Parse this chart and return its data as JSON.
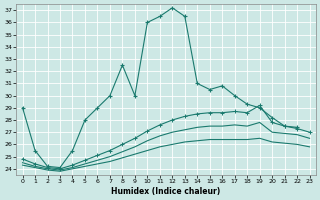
{
  "xlabel": "Humidex (Indice chaleur)",
  "bg_color": "#cde8e5",
  "grid_color": "#b0d8d4",
  "line_color": "#1a7a6e",
  "xlim": [
    -0.5,
    23.5
  ],
  "ylim": [
    23.5,
    37.5
  ],
  "yticks": [
    24,
    25,
    26,
    27,
    28,
    29,
    30,
    31,
    32,
    33,
    34,
    35,
    36,
    37
  ],
  "xticks": [
    0,
    1,
    2,
    3,
    4,
    5,
    6,
    7,
    8,
    9,
    10,
    11,
    12,
    13,
    14,
    15,
    16,
    17,
    18,
    19,
    20,
    21,
    22,
    23
  ],
  "curve_main_x": [
    0,
    1,
    2,
    3,
    4,
    5,
    6,
    7,
    8,
    9,
    10,
    11,
    12,
    13,
    14,
    15,
    16,
    17,
    18,
    19,
    20,
    21,
    22
  ],
  "curve_main_y": [
    29,
    25.5,
    24.2,
    24.1,
    25.5,
    28.0,
    29.0,
    30.0,
    32.5,
    30.0,
    36.0,
    36.5,
    37.2,
    36.5,
    31.0,
    30.5,
    30.8,
    30.0,
    29.3,
    29.0,
    28.2,
    27.5,
    27.4
  ],
  "curve_high_x": [
    0,
    1,
    2,
    3,
    4,
    5,
    6,
    7,
    8,
    9,
    10,
    11,
    12,
    13,
    14,
    15,
    16,
    17,
    18,
    19,
    20,
    21,
    22,
    23
  ],
  "curve_high_y": [
    24.8,
    24.4,
    24.1,
    24.0,
    24.3,
    24.7,
    25.1,
    25.5,
    26.0,
    26.5,
    27.1,
    27.6,
    28.0,
    28.3,
    28.5,
    28.6,
    28.6,
    28.7,
    28.6,
    29.2,
    27.8,
    27.5,
    27.3,
    27.0
  ],
  "curve_mid_x": [
    0,
    1,
    2,
    3,
    4,
    5,
    6,
    7,
    8,
    9,
    10,
    11,
    12,
    13,
    14,
    15,
    16,
    17,
    18,
    19,
    20,
    21,
    22,
    23
  ],
  "curve_mid_y": [
    24.5,
    24.2,
    24.0,
    23.9,
    24.1,
    24.4,
    24.7,
    25.0,
    25.4,
    25.8,
    26.3,
    26.7,
    27.0,
    27.2,
    27.4,
    27.5,
    27.5,
    27.6,
    27.5,
    27.8,
    27.0,
    26.9,
    26.8,
    26.5
  ],
  "curve_low_x": [
    0,
    1,
    2,
    3,
    4,
    5,
    6,
    7,
    8,
    9,
    10,
    11,
    12,
    13,
    14,
    15,
    16,
    17,
    18,
    19,
    20,
    21,
    22,
    23
  ],
  "curve_low_y": [
    24.3,
    24.1,
    23.9,
    23.8,
    24.0,
    24.2,
    24.4,
    24.6,
    24.9,
    25.2,
    25.5,
    25.8,
    26.0,
    26.2,
    26.3,
    26.4,
    26.4,
    26.4,
    26.4,
    26.5,
    26.2,
    26.1,
    26.0,
    25.8
  ]
}
